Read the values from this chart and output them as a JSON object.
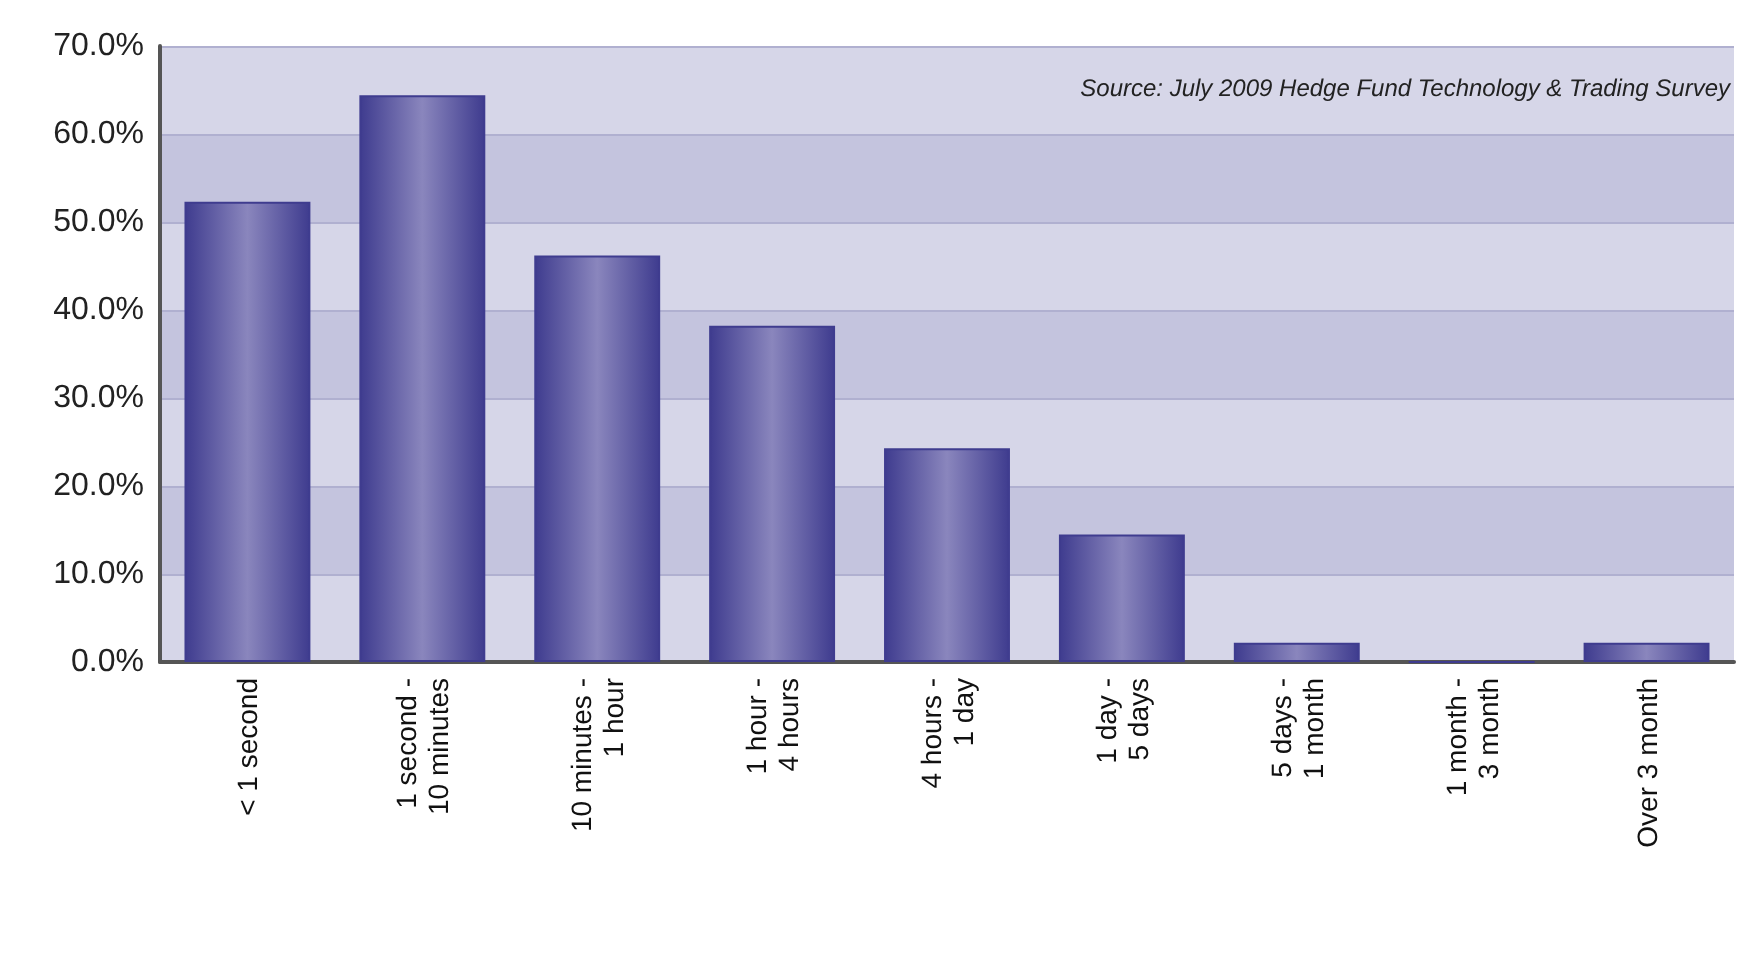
{
  "chart_data": {
    "type": "bar",
    "annotations": [
      "Source: July 2009 Hedge Fund Technology & Trading Survey"
    ],
    "categories": [
      "< 1 second",
      "1 second -\n10 minutes",
      "10 minutes -\n1 hour",
      "1 hour -\n4 hours",
      "4 hours -\n1 day",
      "1 day -\n5 days",
      "5 days -\n1 month",
      "1 month -\n3 month",
      "Over 3 month"
    ],
    "values": [
      52.3,
      64.4,
      46.2,
      38.2,
      24.3,
      14.5,
      2.2,
      0,
      2.2
    ],
    "color": "#3f3c8f",
    "ylim": [
      0,
      70
    ],
    "yticks": [
      {
        "value": 0,
        "label": "0.0%"
      },
      {
        "value": 10,
        "label": "10.0%"
      },
      {
        "value": 20,
        "label": "20.0%"
      },
      {
        "value": 30,
        "label": "30.0%"
      },
      {
        "value": 40,
        "label": "40.0%"
      },
      {
        "value": 50,
        "label": "50.0%"
      },
      {
        "value": 60,
        "label": "60.0%"
      },
      {
        "value": 70,
        "label": "70.0%"
      }
    ],
    "grid": "y"
  }
}
